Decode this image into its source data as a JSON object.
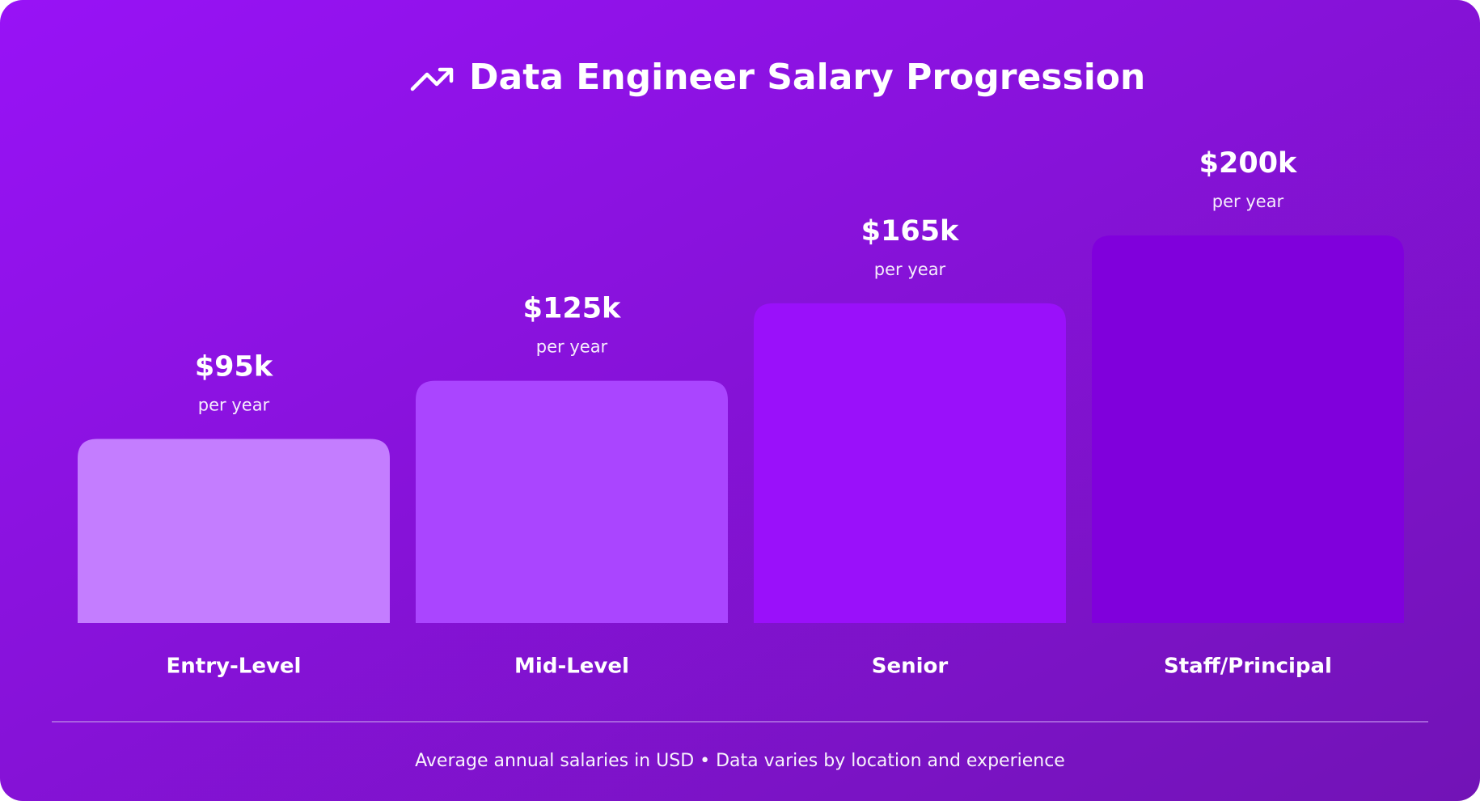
{
  "chart_data": {
    "type": "bar",
    "title": "Data Engineer Salary Progression",
    "categories": [
      "Entry-Level",
      "Mid-Level",
      "Senior",
      "Staff/Principal"
    ],
    "values": [
      95,
      125,
      165,
      200
    ],
    "value_labels": [
      "$95k",
      "$125k",
      "$165k",
      "$200k"
    ],
    "value_sublabel": "per year",
    "colors": [
      "#c47dff",
      "#aa45ff",
      "#9a10fa",
      "#8000dc"
    ],
    "note": "Average annual salaries in USD • Data varies by location and experience"
  }
}
